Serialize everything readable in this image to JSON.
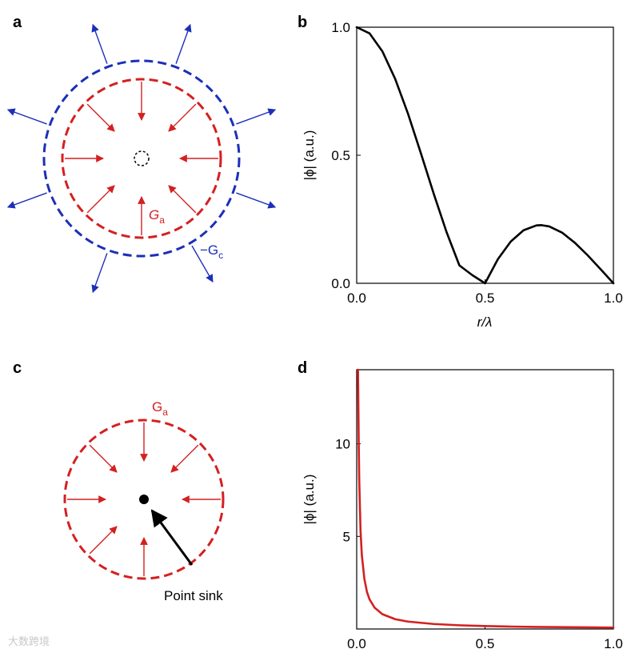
{
  "panels": {
    "a": {
      "letter": "a",
      "inner_label_main": "G",
      "inner_label_sub": "a",
      "outer_label_main": "−G",
      "outer_label_sub": "c",
      "colors": {
        "inner": "#d42020",
        "outer": "#1c2fb8",
        "center": "#000000"
      }
    },
    "c": {
      "letter": "c",
      "label_main": "G",
      "label_sub": "a",
      "point_sink_label": "Point sink",
      "colors": {
        "ring": "#d42020",
        "pointer": "#000000"
      }
    }
  },
  "chart_data": [
    {
      "panel": "b",
      "type": "line",
      "letter": "b",
      "xlabel": "r/λ",
      "ylabel": "|ϕ| (a.u.)",
      "xlim": [
        0,
        1
      ],
      "ylim": [
        0,
        1
      ],
      "x_ticks": [
        "0.0",
        "0.5",
        "1.0"
      ],
      "y_ticks": [
        "0.0",
        "0.5",
        "1.0"
      ],
      "grid": false,
      "series": [
        {
          "color": "#000000",
          "x": [
            0,
            0.05,
            0.1,
            0.15,
            0.2,
            0.25,
            0.3,
            0.35,
            0.4,
            0.45,
            0.5,
            0.55,
            0.6,
            0.65,
            0.7,
            0.72,
            0.75,
            0.8,
            0.85,
            0.9,
            0.95,
            1.0
          ],
          "y": [
            1.0,
            0.976,
            0.906,
            0.798,
            0.662,
            0.508,
            0.35,
            0.2,
            0.07,
            0.032,
            0.0,
            0.094,
            0.163,
            0.207,
            0.226,
            0.227,
            0.222,
            0.198,
            0.158,
            0.109,
            0.055,
            0.0
          ]
        }
      ]
    },
    {
      "panel": "d",
      "type": "line",
      "letter": "d",
      "xlabel": "",
      "ylabel": "|ϕ| (a.u.)",
      "xlim": [
        0,
        1
      ],
      "ylim": [
        0,
        14
      ],
      "x_ticks": [
        "0.0",
        "0.5",
        "1.0"
      ],
      "y_ticks": [
        "5",
        "10"
      ],
      "grid": false,
      "series": [
        {
          "color": "#d42020",
          "x": [
            0.005,
            0.008,
            0.01,
            0.015,
            0.02,
            0.03,
            0.04,
            0.05,
            0.07,
            0.1,
            0.15,
            0.2,
            0.3,
            0.4,
            0.5,
            0.6,
            0.7,
            0.8,
            0.9,
            1.0
          ],
          "y": [
            14.0,
            10.0,
            8.0,
            5.3,
            4.0,
            2.7,
            2.0,
            1.6,
            1.15,
            0.8,
            0.53,
            0.4,
            0.27,
            0.2,
            0.16,
            0.13,
            0.11,
            0.1,
            0.09,
            0.08
          ]
        }
      ]
    }
  ],
  "watermark": "大数跨境"
}
